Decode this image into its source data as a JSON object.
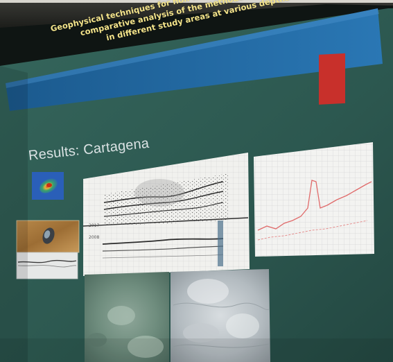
{
  "slide": {
    "title_lines": [
      "Geophysical techniques for non-intrusive documentation of UCH:",
      "comparative analysis of the methodology developed",
      "in different study areas at various depths"
    ],
    "section_heading": "Results: Cartagena",
    "profile_labels": [
      "2017",
      "2008"
    ]
  },
  "colors": {
    "slide_background": "#2f5a52",
    "title_band": "#1d5f96",
    "accent_square": "#c8302b",
    "title_text": "#f3e38a"
  }
}
